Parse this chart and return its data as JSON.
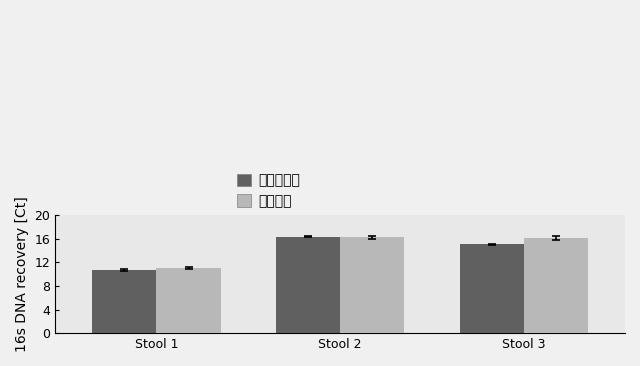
{
  "categories": [
    "Stool 1",
    "Stool 2",
    "Stool 3"
  ],
  "series1_label": "非遠心分離",
  "series2_label": "遠心分離",
  "series1_values": [
    10.75,
    16.35,
    15.1
  ],
  "series2_values": [
    11.1,
    16.25,
    16.2
  ],
  "series1_errors": [
    0.12,
    0.1,
    0.12
  ],
  "series2_errors": [
    0.18,
    0.18,
    0.35
  ],
  "series1_color": "#606060",
  "series2_color": "#b8b8b8",
  "ylim": [
    0,
    20
  ],
  "yticks": [
    0,
    4,
    8,
    12,
    16,
    20
  ],
  "ylabel": "16s DNA recovery [Ct]",
  "bar_width": 0.35,
  "background_color": "#f0f0f0",
  "plot_bg_color": "#e8e8e8",
  "axis_fontsize": 10,
  "tick_fontsize": 9,
  "legend_fontsize": 10
}
